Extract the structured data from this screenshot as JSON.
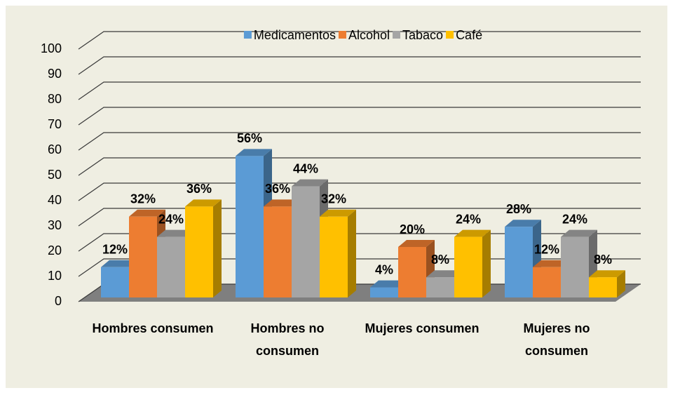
{
  "chart_data": {
    "type": "bar3d",
    "categories": [
      "Hombres consumen",
      "Hombres no consumen",
      "Mujeres consumen",
      "Mujeres no consumen"
    ],
    "series": [
      {
        "name": "Medicamentos",
        "color": "#5b9bd5",
        "values": [
          12,
          56,
          4,
          28
        ],
        "value_labels": [
          "12%",
          "56%",
          "4%",
          "28%"
        ]
      },
      {
        "name": "Alcohol",
        "color": "#ed7d31",
        "values": [
          32,
          36,
          20,
          12
        ],
        "value_labels": [
          "32%",
          "36%",
          "20%",
          "12%"
        ]
      },
      {
        "name": "Tabaco",
        "color": "#a5a5a5",
        "values": [
          24,
          44,
          8,
          24
        ],
        "value_labels": [
          "24%",
          "44%",
          "8%",
          "24%"
        ]
      },
      {
        "name": "Café",
        "color": "#ffc000",
        "values": [
          36,
          32,
          24,
          8
        ],
        "value_labels": [
          "36%",
          "32%",
          "24%",
          "8%"
        ]
      }
    ],
    "ylim": [
      0,
      100
    ],
    "yticks": [
      0,
      10,
      20,
      30,
      40,
      50,
      60,
      70,
      80,
      90,
      100
    ],
    "grid": true,
    "legend": "top"
  }
}
